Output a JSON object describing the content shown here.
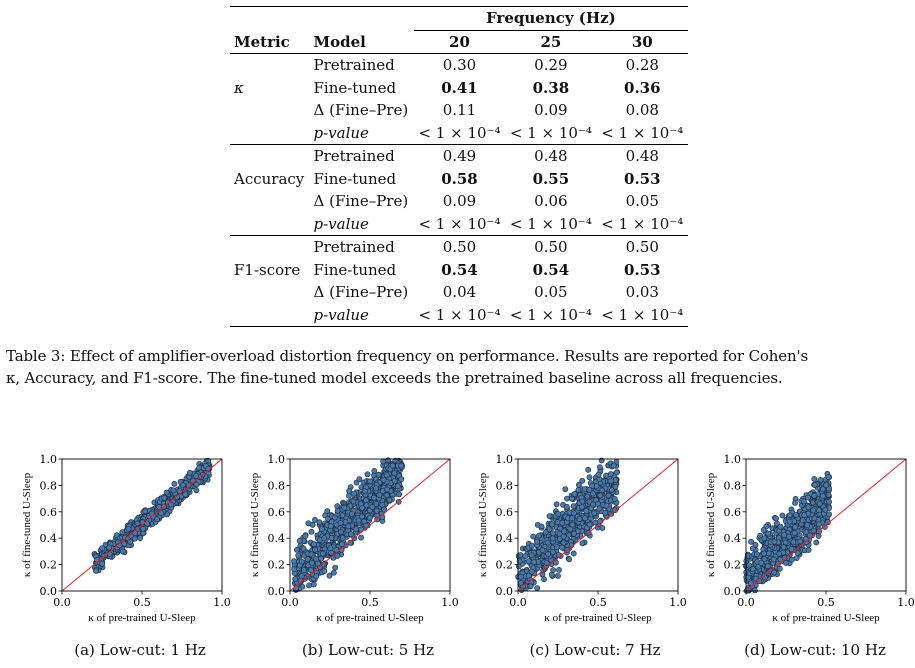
{
  "table": {
    "group_header": "Frequency (Hz)",
    "col_metric": "Metric",
    "col_model": "Model",
    "frequencies": [
      "20",
      "25",
      "30"
    ],
    "groups": [
      {
        "metric": "κ",
        "rows": [
          {
            "model": "Pretrained",
            "values": [
              "0.30",
              "0.29",
              "0.28"
            ],
            "bold": false
          },
          {
            "model": "Fine-tuned",
            "values": [
              "0.41",
              "0.38",
              "0.36"
            ],
            "bold": true
          },
          {
            "model": "Δ (Fine–Pre)",
            "values": [
              "0.11",
              "0.09",
              "0.08"
            ],
            "bold": false
          },
          {
            "model": "p-value",
            "values": [
              "< 1 × 10⁻⁴",
              "< 1 × 10⁻⁴",
              "< 1 × 10⁻⁴"
            ],
            "bold": false,
            "italic_label": true
          }
        ]
      },
      {
        "metric": "Accuracy",
        "rows": [
          {
            "model": "Pretrained",
            "values": [
              "0.49",
              "0.48",
              "0.48"
            ],
            "bold": false
          },
          {
            "model": "Fine-tuned",
            "values": [
              "0.58",
              "0.55",
              "0.53"
            ],
            "bold": true
          },
          {
            "model": "Δ (Fine–Pre)",
            "values": [
              "0.09",
              "0.06",
              "0.05"
            ],
            "bold": false
          },
          {
            "model": "p-value",
            "values": [
              "< 1 × 10⁻⁴",
              "< 1 × 10⁻⁴",
              "< 1 × 10⁻⁴"
            ],
            "bold": false,
            "italic_label": true
          }
        ]
      },
      {
        "metric": "F1-score",
        "rows": [
          {
            "model": "Pretrained",
            "values": [
              "0.50",
              "0.50",
              "0.50"
            ],
            "bold": false
          },
          {
            "model": "Fine-tuned",
            "values": [
              "0.54",
              "0.54",
              "0.53"
            ],
            "bold": true
          },
          {
            "model": "Δ (Fine–Pre)",
            "values": [
              "0.04",
              "0.05",
              "0.03"
            ],
            "bold": false
          },
          {
            "model": "p-value",
            "values": [
              "< 1 × 10⁻⁴",
              "< 1 × 10⁻⁴",
              "< 1 × 10⁻⁴"
            ],
            "bold": false,
            "italic_label": true
          }
        ]
      }
    ]
  },
  "caption": {
    "line1": "Table 3: Effect of amplifier-overload distortion frequency on performance. Results are reported for Cohen's",
    "line2": "κ, Accuracy, and F1-score. The fine-tuned model exceeds the pretrained baseline across all frequencies."
  },
  "colors": {
    "marker_fill": "#4a79aa",
    "marker_edge": "#1a2a3a",
    "diagonal": "#e8202a"
  },
  "chart_data": [
    {
      "type": "scatter",
      "subcaption": "(a) Low-cut: 1 Hz",
      "xlabel": "κ of pre-trained U-Sleep",
      "ylabel": "κ of fine-tuned U-Sleep",
      "xlim": [
        0,
        1
      ],
      "ylim": [
        0,
        1
      ],
      "xticks": [
        "0.0",
        "0.5",
        "1.0"
      ],
      "yticks": [
        "0.0",
        "0.2",
        "0.4",
        "0.6",
        "0.8",
        "1.0"
      ],
      "reference_line": "y = x",
      "grid": false,
      "cloud": {
        "x_range": [
          0.2,
          0.92
        ],
        "mean_offset": 0.01,
        "spread": 0.04,
        "n": 600
      }
    },
    {
      "type": "scatter",
      "subcaption": "(b) Low-cut: 5 Hz",
      "xlabel": "κ of pre-trained U-Sleep",
      "ylabel": "κ of fine-tuned U-Sleep",
      "xlim": [
        0,
        1
      ],
      "ylim": [
        0,
        1
      ],
      "xticks": [
        "0.0",
        "0.5",
        "1.0"
      ],
      "yticks": [
        "0.0",
        "0.2",
        "0.4",
        "0.6",
        "0.8",
        "1.0"
      ],
      "reference_line": "y = x",
      "grid": false,
      "cloud": {
        "x_range": [
          0.02,
          0.7
        ],
        "mean_offset": 0.17,
        "spread": 0.1,
        "n": 800
      }
    },
    {
      "type": "scatter",
      "subcaption": "(c) Low-cut: 7 Hz",
      "xlabel": "κ of pre-trained U-Sleep",
      "ylabel": "κ of fine-tuned U-Sleep",
      "xlim": [
        0,
        1
      ],
      "ylim": [
        0,
        1
      ],
      "xticks": [
        "0.0",
        "0.5",
        "1.0"
      ],
      "yticks": [
        "0.0",
        "0.2",
        "0.4",
        "0.6",
        "0.8",
        "1.0"
      ],
      "reference_line": "y = x",
      "grid": false,
      "cloud": {
        "x_range": [
          0.0,
          0.62
        ],
        "mean_offset": 0.2,
        "spread": 0.11,
        "n": 600
      }
    },
    {
      "type": "scatter",
      "subcaption": "(d) Low-cut: 10 Hz",
      "xlabel": "κ of pre-trained U-Sleep",
      "ylabel": "κ of fine-tuned U-Sleep",
      "xlim": [
        0,
        1
      ],
      "ylim": [
        0,
        1
      ],
      "xticks": [
        "0.0",
        "0.5",
        "1.0"
      ],
      "yticks": [
        "0.0",
        "0.2",
        "0.4",
        "0.6",
        "0.8",
        "1.0"
      ],
      "reference_line": "y = x",
      "grid": false,
      "cloud": {
        "x_range": [
          0.0,
          0.52
        ],
        "mean_offset": 0.18,
        "spread": 0.1,
        "n": 650
      }
    }
  ]
}
